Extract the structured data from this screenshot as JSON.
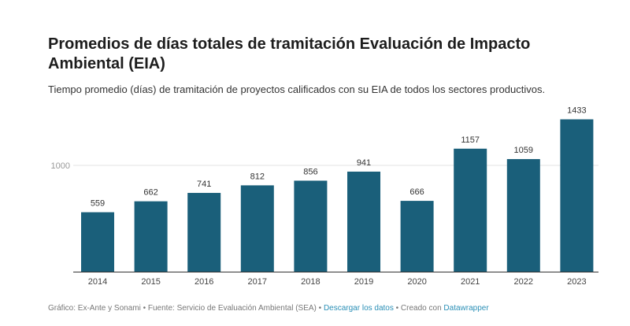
{
  "chart_data": {
    "type": "bar",
    "title": "Promedios de días totales de tramitación Evaluación de Impacto Ambiental (EIA)",
    "subtitle": "Tiempo promedio (días) de tramitación de proyectos calificados con su EIA de todos los sectores productivos.",
    "categories": [
      "2014",
      "2015",
      "2016",
      "2017",
      "2018",
      "2019",
      "2020",
      "2021",
      "2022",
      "2023"
    ],
    "values": [
      559,
      662,
      741,
      812,
      856,
      941,
      666,
      1157,
      1059,
      1433
    ],
    "y_ticks": [
      1000
    ],
    "ylim": [
      0,
      1433
    ],
    "grid": true,
    "bar_color": "#1a5f7a"
  },
  "footer": {
    "credit": "Gráfico: Ex-Ante y Sonami • Fuente: Servicio de Evaluación Ambiental (SEA) • ",
    "download_link": "Descargar los datos",
    "created": " • Creado con ",
    "datawrapper_link": "Datawrapper"
  }
}
